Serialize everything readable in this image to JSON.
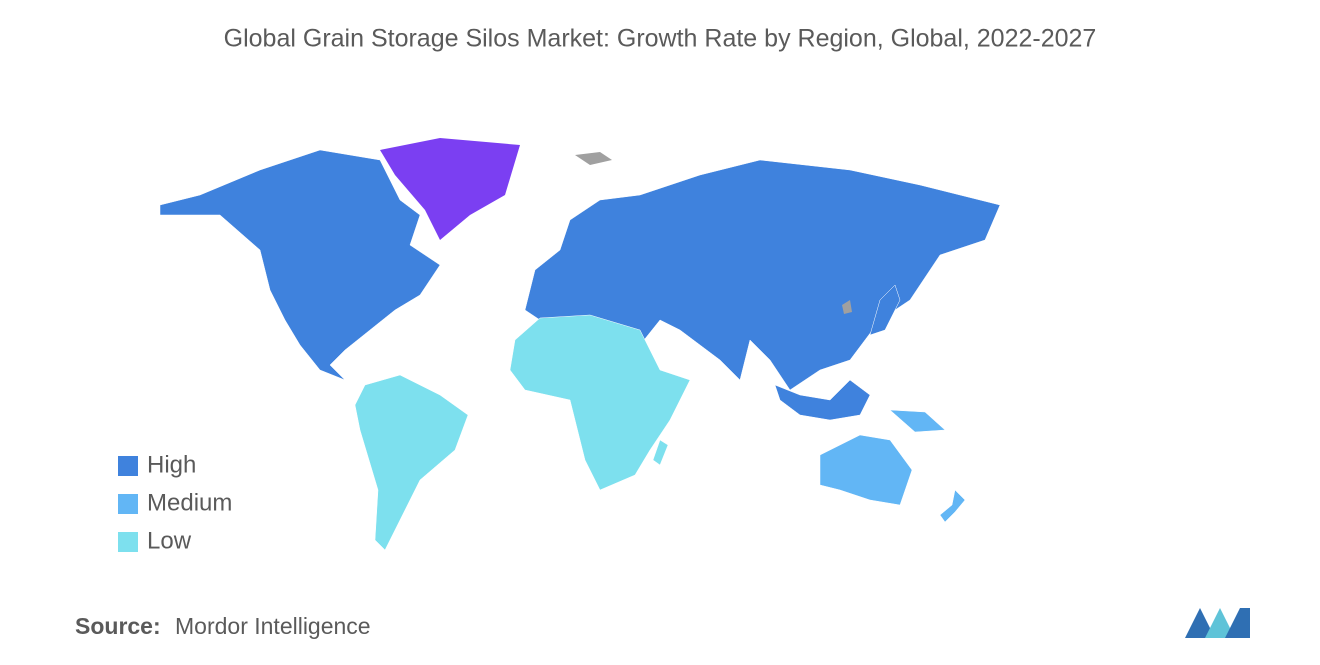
{
  "title": "Global Grain Storage Silos Market: Growth Rate by Region, Global, 2022-2027",
  "legend": [
    {
      "label": "High",
      "color": "#3f82dd"
    },
    {
      "label": "Medium",
      "color": "#62b6f5"
    },
    {
      "label": "Low",
      "color": "#7de0ee"
    }
  ],
  "source": {
    "label": "Source:",
    "text": "Mordor Intelligence"
  }
}
